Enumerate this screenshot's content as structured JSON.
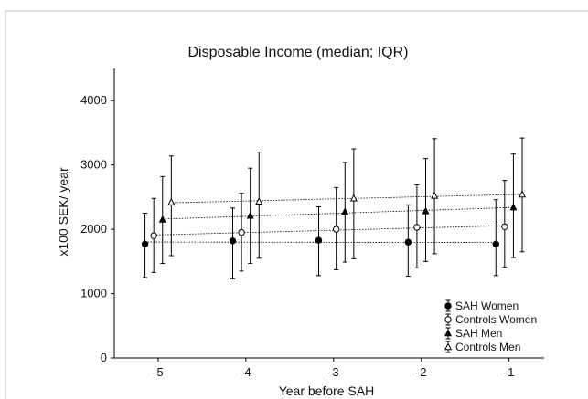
{
  "chart_data": {
    "type": "scatter",
    "title": "Disposable Income (median; IQR)",
    "xlabel": "Year before SAH",
    "ylabel": "x100 SEK/ year",
    "xlim": [
      -5.5,
      -0.6
    ],
    "ylim": [
      0,
      4500
    ],
    "x_ticks": [
      -5,
      -4,
      -3,
      -2,
      -1
    ],
    "x_tick_labels": [
      "-5",
      "-4",
      "-3",
      "-2",
      "-1"
    ],
    "y_ticks": [
      0,
      1000,
      2000,
      3000,
      4000
    ],
    "y_tick_labels": [
      "0",
      "1000",
      "2000",
      "3000",
      "4000"
    ],
    "grid": false,
    "legend_position": "bottom-right",
    "series": [
      {
        "name": "SAH Women",
        "marker": "filled-circle",
        "x": [
          -5.15,
          -4.15,
          -3.17,
          -2.15,
          -1.15
        ],
        "values": [
          1770,
          1820,
          1830,
          1800,
          1770
        ],
        "q1": [
          1250,
          1230,
          1280,
          1270,
          1280
        ],
        "q3": [
          2250,
          2330,
          2350,
          2380,
          2460
        ]
      },
      {
        "name": "Controls Women",
        "marker": "open-circle",
        "x": [
          -5.05,
          -4.05,
          -2.97,
          -2.05,
          -1.05
        ],
        "values": [
          1900,
          1950,
          2000,
          2030,
          2040
        ],
        "q1": [
          1330,
          1350,
          1370,
          1400,
          1410
        ],
        "q3": [
          2480,
          2560,
          2650,
          2690,
          2760
        ]
      },
      {
        "name": "SAH Men",
        "marker": "filled-triangle",
        "x": [
          -4.95,
          -3.95,
          -2.87,
          -1.95,
          -0.95
        ],
        "values": [
          2150,
          2210,
          2270,
          2280,
          2340
        ],
        "q1": [
          1470,
          1470,
          1490,
          1500,
          1560
        ],
        "q3": [
          2820,
          2950,
          3040,
          3100,
          3170
        ]
      },
      {
        "name": "Controls Men",
        "marker": "open-triangle",
        "x": [
          -4.85,
          -3.85,
          -2.77,
          -1.85,
          -0.85
        ],
        "values": [
          2420,
          2430,
          2480,
          2520,
          2540
        ],
        "q1": [
          1590,
          1550,
          1540,
          1620,
          1650
        ],
        "q3": [
          3140,
          3200,
          3250,
          3410,
          3420
        ]
      }
    ]
  }
}
